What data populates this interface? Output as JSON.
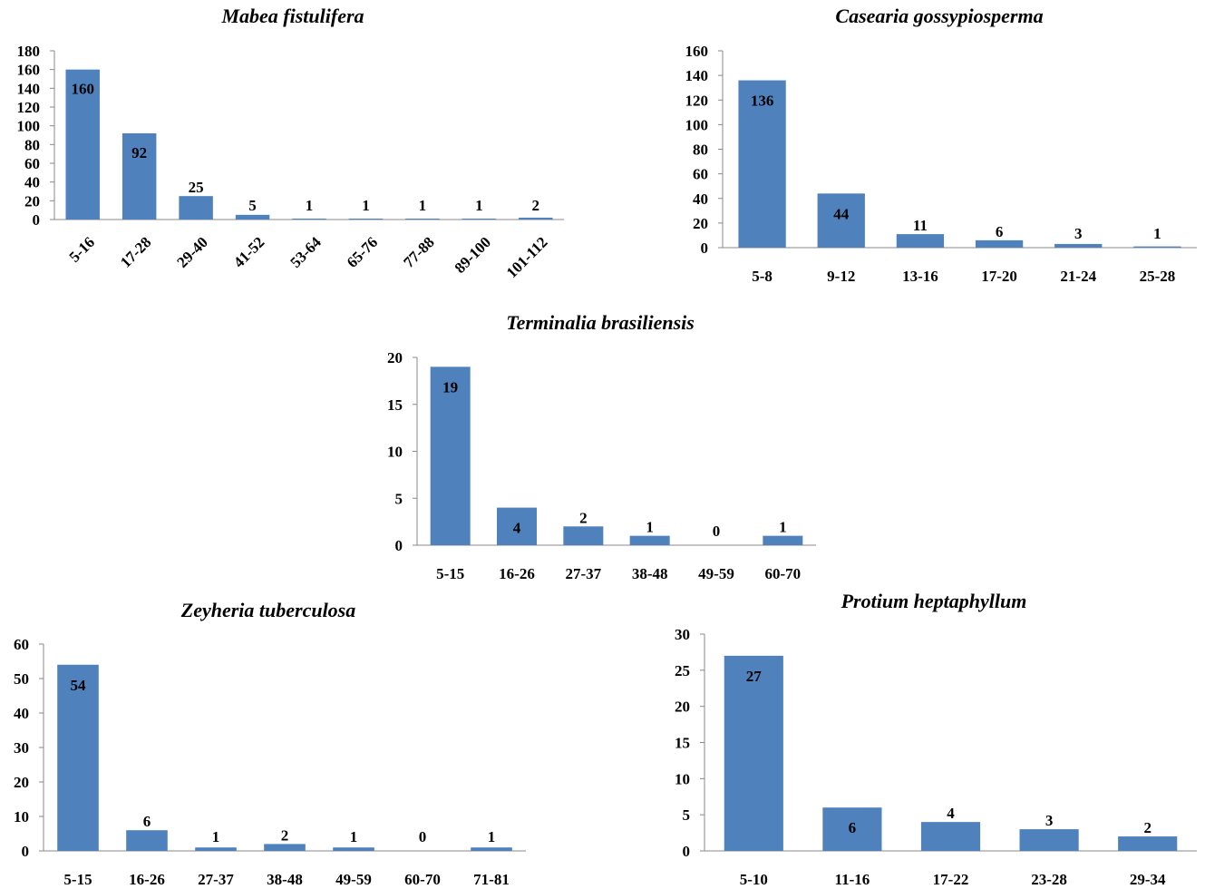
{
  "chart_data": [
    {
      "type": "bar",
      "title": "Mabea fistulifera",
      "categories": [
        "5-16",
        "17-28",
        "29-40",
        "41-52",
        "53-64",
        "65-76",
        "77-88",
        "89-100",
        "101-112"
      ],
      "values": [
        160,
        92,
        25,
        5,
        1,
        1,
        1,
        1,
        2
      ],
      "data_labels": [
        "160",
        "92",
        "25",
        "5",
        "1",
        "1",
        "1",
        "1",
        "2"
      ],
      "ylim": [
        0,
        180
      ],
      "yticks": [
        "0",
        "20",
        "40",
        "60",
        "80",
        "100",
        "120",
        "140",
        "160",
        "180"
      ],
      "color": "#4F81BD",
      "grid": false,
      "xlabel_rotation": "diagonal"
    },
    {
      "type": "bar",
      "title": "Casearia gossypiosperma",
      "categories": [
        "5-8",
        "9-12",
        "13-16",
        "17-20",
        "21-24",
        "25-28"
      ],
      "values": [
        136,
        44,
        11,
        6,
        3,
        1
      ],
      "data_labels": [
        "136",
        "44",
        "11",
        "6",
        "3",
        "1"
      ],
      "ylim": [
        0,
        160
      ],
      "yticks": [
        "0",
        "20",
        "40",
        "60",
        "80",
        "100",
        "120",
        "140",
        "160"
      ],
      "color": "#4F81BD",
      "grid": false
    },
    {
      "type": "bar",
      "title": "Terminalia brasiliensis",
      "categories": [
        "5-15",
        "16-26",
        "27-37",
        "38-48",
        "49-59",
        "60-70"
      ],
      "values": [
        19,
        4,
        2,
        1,
        0,
        1
      ],
      "data_labels": [
        "19",
        "4",
        "2",
        "1",
        "0",
        "1"
      ],
      "ylim": [
        0,
        20
      ],
      "yticks": [
        "0",
        "5",
        "10",
        "15",
        "20"
      ],
      "color": "#4F81BD",
      "grid": false
    },
    {
      "type": "bar",
      "title": "Zeyheria tuberculosa",
      "categories": [
        "5-15",
        "16-26",
        "27-37",
        "38-48",
        "49-59",
        "60-70",
        "71-81"
      ],
      "values": [
        54,
        6,
        1,
        2,
        1,
        0,
        1
      ],
      "data_labels": [
        "54",
        "6",
        "1",
        "2",
        "1",
        "0",
        "1"
      ],
      "ylim": [
        0,
        60
      ],
      "yticks": [
        "0",
        "10",
        "20",
        "30",
        "40",
        "50",
        "60"
      ],
      "color": "#4F81BD",
      "grid": false
    },
    {
      "type": "bar",
      "title": "Protium heptaphyllum",
      "categories": [
        "5-10",
        "11-16",
        "17-22",
        "23-28",
        "29-34"
      ],
      "values": [
        27,
        6,
        4,
        3,
        2
      ],
      "data_labels": [
        "27",
        "6",
        "4",
        "3",
        "2"
      ],
      "ylim": [
        0,
        30
      ],
      "yticks": [
        "0",
        "5",
        "10",
        "15",
        "20",
        "25",
        "30"
      ],
      "color": "#4F81BD",
      "grid": false
    }
  ]
}
